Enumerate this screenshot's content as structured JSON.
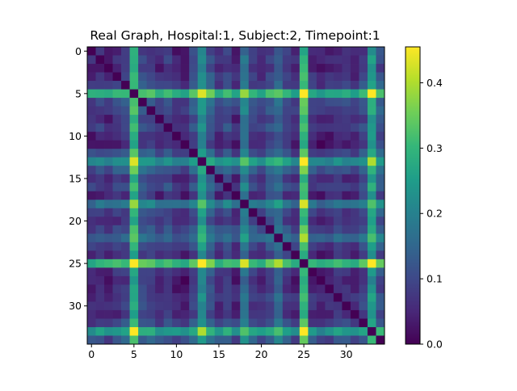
{
  "chart_data": {
    "type": "heatmap",
    "title": "Real Graph, Hospital:1, Subject:2, Timepoint:1",
    "xlabel": "",
    "ylabel": "",
    "n": 35,
    "x_ticks": [
      0,
      5,
      10,
      15,
      20,
      25,
      30
    ],
    "x_tick_labels": [
      "0",
      "5",
      "10",
      "15",
      "20",
      "25",
      "30"
    ],
    "y_ticks": [
      0,
      5,
      10,
      15,
      20,
      25,
      30
    ],
    "y_tick_labels": [
      "0",
      "5",
      "10",
      "15",
      "20",
      "25",
      "30"
    ],
    "colorbar": {
      "min": 0.0,
      "max": 0.455,
      "ticks": [
        0.0,
        0.1,
        0.2,
        0.3,
        0.4
      ],
      "tick_labels": [
        "0.0",
        "0.1",
        "0.2",
        "0.3",
        "0.4"
      ],
      "colormap": "viridis"
    },
    "node_strength": [
      0.05,
      0.06,
      0.045,
      0.07,
      0.08,
      0.28,
      0.1,
      0.09,
      0.06,
      0.08,
      0.05,
      0.04,
      0.1,
      0.22,
      0.12,
      0.06,
      0.09,
      0.05,
      0.17,
      0.08,
      0.06,
      0.1,
      0.14,
      0.08,
      0.05,
      0.3,
      0.06,
      0.04,
      0.05,
      0.07,
      0.06,
      0.05,
      0.09,
      0.24,
      0.11
    ],
    "values": "symmetric 35x35 connectivity matrix; cell(i,j) ~ strength[i] + strength[j] with zero diagonal (values in 0.0-0.455)"
  },
  "colors": {
    "viridis": [
      "#440154",
      "#482878",
      "#3e4989",
      "#31688e",
      "#26828e",
      "#1f9e89",
      "#35b779",
      "#6ece58",
      "#b5de2b",
      "#fde725"
    ]
  }
}
